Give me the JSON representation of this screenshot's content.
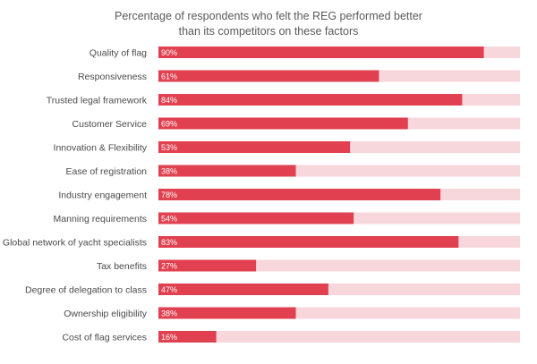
{
  "title_line1": "Percentage of respondents who felt the REG performed better",
  "title_line2": "than its competitors on these factors",
  "colors": {
    "bar": "#e0404f",
    "track": "#f8d7dc"
  },
  "chart_data": {
    "type": "bar",
    "orientation": "horizontal",
    "title": "Percentage of respondents who felt the REG performed better than its competitors on these factors",
    "categories": [
      "Quality of flag",
      "Responsiveness",
      "Trusted legal framework",
      "Customer Service",
      "Innovation & Flexibility",
      "Ease of registration",
      "Industry engagement",
      "Manning requirements",
      "Global network of yacht specialists",
      "Tax benefits",
      "Degree of delegation to class",
      "Ownership eligibility",
      "Cost of flag services"
    ],
    "values": [
      90,
      61,
      84,
      69,
      53,
      38,
      78,
      54,
      83,
      27,
      47,
      38,
      16
    ],
    "value_labels": [
      "90%",
      "61%",
      "84%",
      "69%",
      "53%",
      "38%",
      "78%",
      "54%",
      "83%",
      "27%",
      "47%",
      "38%",
      "16%"
    ],
    "xlim": [
      0,
      100
    ],
    "grid": false,
    "legend": "none"
  }
}
